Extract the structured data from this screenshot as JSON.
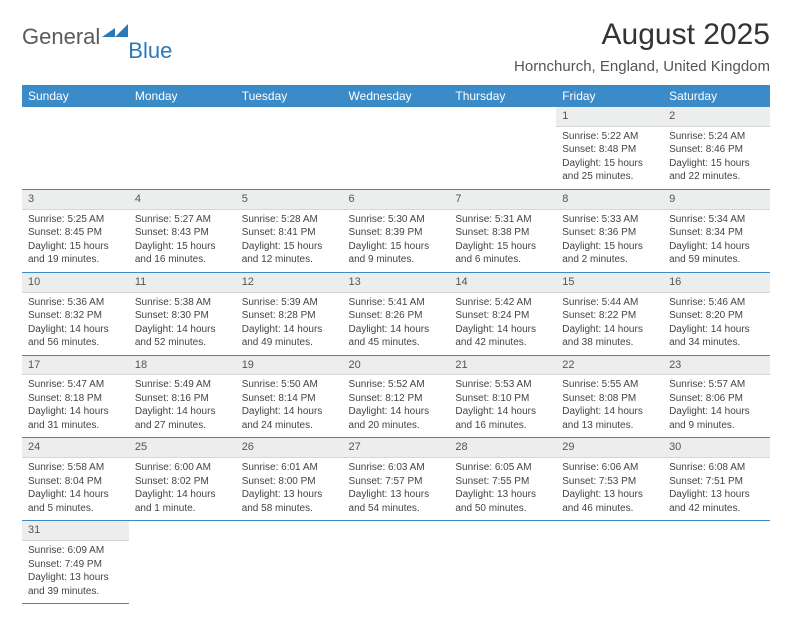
{
  "logo": {
    "general": "General",
    "blue": "Blue",
    "shape_color": "#2a7ab9"
  },
  "header": {
    "month_title": "August 2025",
    "location": "Hornchurch, England, United Kingdom"
  },
  "colors": {
    "header_bg": "#3b8bc8",
    "header_text": "#ffffff",
    "daynum_bg": "#eceded",
    "cell_border": "#3b8bc8",
    "text": "#444444"
  },
  "weekdays": [
    "Sunday",
    "Monday",
    "Tuesday",
    "Wednesday",
    "Thursday",
    "Friday",
    "Saturday"
  ],
  "weeks": [
    [
      null,
      null,
      null,
      null,
      null,
      {
        "n": "1",
        "sr": "Sunrise: 5:22 AM",
        "ss": "Sunset: 8:48 PM",
        "d1": "Daylight: 15 hours",
        "d2": "and 25 minutes."
      },
      {
        "n": "2",
        "sr": "Sunrise: 5:24 AM",
        "ss": "Sunset: 8:46 PM",
        "d1": "Daylight: 15 hours",
        "d2": "and 22 minutes."
      }
    ],
    [
      {
        "n": "3",
        "sr": "Sunrise: 5:25 AM",
        "ss": "Sunset: 8:45 PM",
        "d1": "Daylight: 15 hours",
        "d2": "and 19 minutes."
      },
      {
        "n": "4",
        "sr": "Sunrise: 5:27 AM",
        "ss": "Sunset: 8:43 PM",
        "d1": "Daylight: 15 hours",
        "d2": "and 16 minutes."
      },
      {
        "n": "5",
        "sr": "Sunrise: 5:28 AM",
        "ss": "Sunset: 8:41 PM",
        "d1": "Daylight: 15 hours",
        "d2": "and 12 minutes."
      },
      {
        "n": "6",
        "sr": "Sunrise: 5:30 AM",
        "ss": "Sunset: 8:39 PM",
        "d1": "Daylight: 15 hours",
        "d2": "and 9 minutes."
      },
      {
        "n": "7",
        "sr": "Sunrise: 5:31 AM",
        "ss": "Sunset: 8:38 PM",
        "d1": "Daylight: 15 hours",
        "d2": "and 6 minutes."
      },
      {
        "n": "8",
        "sr": "Sunrise: 5:33 AM",
        "ss": "Sunset: 8:36 PM",
        "d1": "Daylight: 15 hours",
        "d2": "and 2 minutes."
      },
      {
        "n": "9",
        "sr": "Sunrise: 5:34 AM",
        "ss": "Sunset: 8:34 PM",
        "d1": "Daylight: 14 hours",
        "d2": "and 59 minutes."
      }
    ],
    [
      {
        "n": "10",
        "sr": "Sunrise: 5:36 AM",
        "ss": "Sunset: 8:32 PM",
        "d1": "Daylight: 14 hours",
        "d2": "and 56 minutes."
      },
      {
        "n": "11",
        "sr": "Sunrise: 5:38 AM",
        "ss": "Sunset: 8:30 PM",
        "d1": "Daylight: 14 hours",
        "d2": "and 52 minutes."
      },
      {
        "n": "12",
        "sr": "Sunrise: 5:39 AM",
        "ss": "Sunset: 8:28 PM",
        "d1": "Daylight: 14 hours",
        "d2": "and 49 minutes."
      },
      {
        "n": "13",
        "sr": "Sunrise: 5:41 AM",
        "ss": "Sunset: 8:26 PM",
        "d1": "Daylight: 14 hours",
        "d2": "and 45 minutes."
      },
      {
        "n": "14",
        "sr": "Sunrise: 5:42 AM",
        "ss": "Sunset: 8:24 PM",
        "d1": "Daylight: 14 hours",
        "d2": "and 42 minutes."
      },
      {
        "n": "15",
        "sr": "Sunrise: 5:44 AM",
        "ss": "Sunset: 8:22 PM",
        "d1": "Daylight: 14 hours",
        "d2": "and 38 minutes."
      },
      {
        "n": "16",
        "sr": "Sunrise: 5:46 AM",
        "ss": "Sunset: 8:20 PM",
        "d1": "Daylight: 14 hours",
        "d2": "and 34 minutes."
      }
    ],
    [
      {
        "n": "17",
        "sr": "Sunrise: 5:47 AM",
        "ss": "Sunset: 8:18 PM",
        "d1": "Daylight: 14 hours",
        "d2": "and 31 minutes."
      },
      {
        "n": "18",
        "sr": "Sunrise: 5:49 AM",
        "ss": "Sunset: 8:16 PM",
        "d1": "Daylight: 14 hours",
        "d2": "and 27 minutes."
      },
      {
        "n": "19",
        "sr": "Sunrise: 5:50 AM",
        "ss": "Sunset: 8:14 PM",
        "d1": "Daylight: 14 hours",
        "d2": "and 24 minutes."
      },
      {
        "n": "20",
        "sr": "Sunrise: 5:52 AM",
        "ss": "Sunset: 8:12 PM",
        "d1": "Daylight: 14 hours",
        "d2": "and 20 minutes."
      },
      {
        "n": "21",
        "sr": "Sunrise: 5:53 AM",
        "ss": "Sunset: 8:10 PM",
        "d1": "Daylight: 14 hours",
        "d2": "and 16 minutes."
      },
      {
        "n": "22",
        "sr": "Sunrise: 5:55 AM",
        "ss": "Sunset: 8:08 PM",
        "d1": "Daylight: 14 hours",
        "d2": "and 13 minutes."
      },
      {
        "n": "23",
        "sr": "Sunrise: 5:57 AM",
        "ss": "Sunset: 8:06 PM",
        "d1": "Daylight: 14 hours",
        "d2": "and 9 minutes."
      }
    ],
    [
      {
        "n": "24",
        "sr": "Sunrise: 5:58 AM",
        "ss": "Sunset: 8:04 PM",
        "d1": "Daylight: 14 hours",
        "d2": "and 5 minutes."
      },
      {
        "n": "25",
        "sr": "Sunrise: 6:00 AM",
        "ss": "Sunset: 8:02 PM",
        "d1": "Daylight: 14 hours",
        "d2": "and 1 minute."
      },
      {
        "n": "26",
        "sr": "Sunrise: 6:01 AM",
        "ss": "Sunset: 8:00 PM",
        "d1": "Daylight: 13 hours",
        "d2": "and 58 minutes."
      },
      {
        "n": "27",
        "sr": "Sunrise: 6:03 AM",
        "ss": "Sunset: 7:57 PM",
        "d1": "Daylight: 13 hours",
        "d2": "and 54 minutes."
      },
      {
        "n": "28",
        "sr": "Sunrise: 6:05 AM",
        "ss": "Sunset: 7:55 PM",
        "d1": "Daylight: 13 hours",
        "d2": "and 50 minutes."
      },
      {
        "n": "29",
        "sr": "Sunrise: 6:06 AM",
        "ss": "Sunset: 7:53 PM",
        "d1": "Daylight: 13 hours",
        "d2": "and 46 minutes."
      },
      {
        "n": "30",
        "sr": "Sunrise: 6:08 AM",
        "ss": "Sunset: 7:51 PM",
        "d1": "Daylight: 13 hours",
        "d2": "and 42 minutes."
      }
    ],
    [
      {
        "n": "31",
        "sr": "Sunrise: 6:09 AM",
        "ss": "Sunset: 7:49 PM",
        "d1": "Daylight: 13 hours",
        "d2": "and 39 minutes."
      },
      null,
      null,
      null,
      null,
      null,
      null
    ]
  ]
}
